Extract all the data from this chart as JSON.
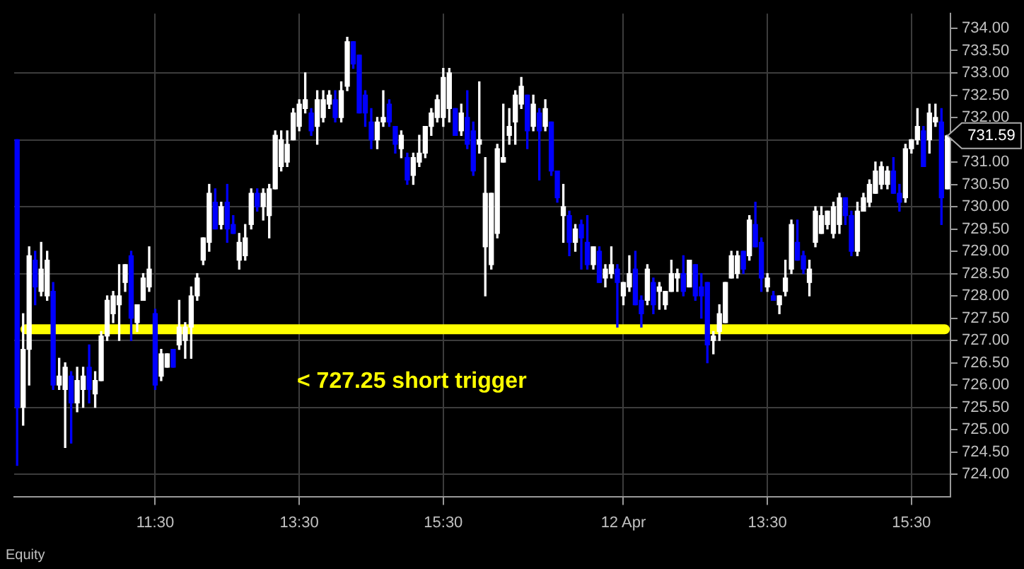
{
  "chart_data": {
    "type": "candlestick",
    "categories": [
      null,
      null,
      null,
      null,
      null,
      null,
      null,
      null,
      null,
      null,
      null,
      null,
      null,
      null,
      null,
      null,
      null,
      null,
      null,
      null,
      null,
      null,
      null,
      "11:30",
      null,
      null,
      null,
      null,
      null,
      null,
      null,
      null,
      null,
      null,
      null,
      null,
      null,
      null,
      null,
      null,
      null,
      null,
      null,
      null,
      null,
      null,
      null,
      "13:30",
      null,
      null,
      null,
      null,
      null,
      null,
      null,
      null,
      null,
      null,
      null,
      null,
      null,
      null,
      null,
      null,
      null,
      null,
      null,
      null,
      null,
      null,
      null,
      "15:30",
      null,
      null,
      null,
      null,
      null,
      null,
      null,
      null,
      null,
      null,
      null,
      null,
      null,
      null,
      null,
      null,
      null,
      null,
      null,
      null,
      null,
      null,
      null,
      null,
      null,
      null,
      null,
      null,
      null,
      "12 Apr",
      null,
      null,
      null,
      null,
      null,
      null,
      null,
      null,
      null,
      null,
      null,
      null,
      null,
      null,
      null,
      null,
      null,
      null,
      null,
      null,
      null,
      null,
      null,
      "13:30",
      null,
      null,
      null,
      null,
      null,
      null,
      null,
      null,
      null,
      null,
      null,
      null,
      null,
      null,
      null,
      null,
      null,
      null,
      null,
      null,
      null,
      null,
      null,
      "15:30",
      null,
      null,
      null,
      null,
      null,
      null
    ],
    "ohlc": [
      [
        731.5,
        731.5,
        724.2,
        725.5
      ],
      [
        725.5,
        727.6,
        725.1,
        726.8
      ],
      [
        726.8,
        729.1,
        726.0,
        728.9
      ],
      [
        728.8,
        729.0,
        727.8,
        728.2
      ],
      [
        728.1,
        729.2,
        728.0,
        728.6
      ],
      [
        728.0,
        729.0,
        727.9,
        728.8
      ],
      [
        728.1,
        728.3,
        725.9,
        726.0
      ],
      [
        726.0,
        726.6,
        725.9,
        726.2
      ],
      [
        725.9,
        726.5,
        724.6,
        726.4
      ],
      [
        726.2,
        726.3,
        724.7,
        725.6
      ],
      [
        725.6,
        726.4,
        725.4,
        726.1
      ],
      [
        725.9,
        726.4,
        725.5,
        726.2
      ],
      [
        726.4,
        726.9,
        725.6,
        725.9
      ],
      [
        725.8,
        726.3,
        725.5,
        726.1
      ],
      [
        726.1,
        727.2,
        726.1,
        727.1
      ],
      [
        727.1,
        728.0,
        727.0,
        727.9
      ],
      [
        727.6,
        728.1,
        727.4,
        728.0
      ],
      [
        727.8,
        728.7,
        727.0,
        728.0
      ],
      [
        728.3,
        728.7,
        728.1,
        728.7
      ],
      [
        728.9,
        729.0,
        727.0,
        727.5
      ],
      [
        727.4,
        727.8,
        727.2,
        727.8
      ],
      [
        727.9,
        728.5,
        727.9,
        728.4
      ],
      [
        728.2,
        729.1,
        728.1,
        728.6
      ],
      [
        727.6,
        727.7,
        725.9,
        726.0
      ],
      [
        726.2,
        726.8,
        726.1,
        726.7
      ],
      [
        726.4,
        726.7,
        726.4,
        726.7
      ],
      [
        726.8,
        726.8,
        726.4,
        726.4
      ],
      [
        726.9,
        727.9,
        726.8,
        727.3
      ],
      [
        727.0,
        727.4,
        726.6,
        727.3
      ],
      [
        727.3,
        728.2,
        726.6,
        728.0
      ],
      [
        728.0,
        728.5,
        727.9,
        728.4
      ],
      [
        728.8,
        729.3,
        728.7,
        729.3
      ],
      [
        729.2,
        730.5,
        729.0,
        730.3
      ],
      [
        730.1,
        730.4,
        729.5,
        729.5
      ],
      [
        729.6,
        730.1,
        729.5,
        730.0
      ],
      [
        730.1,
        730.5,
        729.2,
        729.5
      ],
      [
        729.6,
        729.8,
        729.4,
        729.4
      ],
      [
        728.8,
        729.4,
        728.6,
        729.2
      ],
      [
        728.9,
        729.6,
        728.8,
        729.3
      ],
      [
        729.6,
        730.4,
        729.5,
        730.3
      ],
      [
        730.3,
        730.4,
        729.9,
        730.0
      ],
      [
        730.0,
        730.4,
        729.7,
        730.3
      ],
      [
        729.8,
        730.5,
        729.3,
        730.4
      ],
      [
        730.4,
        731.7,
        730.4,
        731.6
      ],
      [
        730.9,
        731.7,
        730.8,
        731.5
      ],
      [
        731.0,
        731.7,
        730.9,
        731.4
      ],
      [
        731.5,
        732.2,
        731.5,
        732.1
      ],
      [
        731.8,
        732.4,
        731.7,
        732.3
      ],
      [
        732.2,
        733.0,
        732.1,
        732.4
      ],
      [
        732.1,
        732.2,
        731.6,
        731.7
      ],
      [
        731.8,
        732.6,
        731.4,
        732.4
      ],
      [
        732.0,
        732.6,
        731.9,
        732.4
      ],
      [
        732.3,
        732.6,
        732.2,
        732.5
      ],
      [
        732.4,
        732.6,
        731.9,
        732.0
      ],
      [
        732.0,
        732.8,
        731.9,
        732.6
      ],
      [
        732.7,
        733.8,
        732.6,
        733.7
      ],
      [
        733.7,
        733.7,
        733.1,
        733.2
      ],
      [
        733.4,
        733.4,
        732.1,
        732.1
      ],
      [
        732.5,
        732.6,
        731.8,
        732.1
      ],
      [
        731.9,
        732.2,
        731.3,
        731.5
      ],
      [
        731.5,
        732.0,
        731.3,
        731.9
      ],
      [
        731.9,
        732.6,
        731.8,
        732.0
      ],
      [
        732.3,
        732.4,
        731.8,
        731.9
      ],
      [
        731.8,
        731.8,
        731.2,
        731.4
      ],
      [
        731.3,
        731.7,
        731.1,
        731.6
      ],
      [
        731.1,
        731.2,
        730.5,
        730.6
      ],
      [
        730.7,
        731.2,
        730.5,
        731.1
      ],
      [
        731.0,
        731.6,
        730.9,
        731.2
      ],
      [
        731.2,
        731.8,
        731.1,
        731.8
      ],
      [
        731.8,
        732.2,
        731.6,
        732.1
      ],
      [
        732.0,
        732.5,
        731.9,
        732.4
      ],
      [
        732.0,
        733.1,
        731.8,
        732.9
      ],
      [
        732.2,
        733.1,
        731.9,
        733.0
      ],
      [
        732.2,
        732.2,
        731.6,
        731.6
      ],
      [
        731.7,
        732.3,
        731.6,
        732.1
      ],
      [
        732.0,
        732.6,
        731.3,
        731.4
      ],
      [
        731.7,
        731.9,
        730.7,
        730.8
      ],
      [
        731.4,
        732.8,
        731.2,
        731.5
      ],
      [
        729.1,
        731.1,
        728.0,
        730.3
      ],
      [
        728.7,
        730.3,
        728.6,
        730.3
      ],
      [
        729.4,
        731.4,
        729.3,
        731.3
      ],
      [
        731.0,
        732.3,
        731.0,
        731.1
      ],
      [
        731.6,
        732.2,
        731.4,
        731.8
      ],
      [
        731.9,
        732.6,
        731.4,
        732.5
      ],
      [
        732.3,
        732.9,
        732.2,
        732.7
      ],
      [
        732.5,
        732.5,
        731.3,
        731.7
      ],
      [
        731.8,
        732.5,
        731.7,
        732.3
      ],
      [
        732.1,
        732.2,
        730.6,
        731.7
      ],
      [
        731.8,
        732.4,
        731.7,
        732.2
      ],
      [
        731.9,
        731.9,
        730.7,
        730.8
      ],
      [
        730.8,
        730.8,
        730.1,
        730.2
      ],
      [
        729.8,
        730.5,
        729.2,
        730.0
      ],
      [
        729.8,
        729.9,
        728.9,
        729.2
      ],
      [
        729.2,
        729.6,
        729.0,
        729.5
      ],
      [
        729.6,
        729.7,
        728.6,
        729.3
      ],
      [
        729.2,
        729.8,
        728.6,
        728.7
      ],
      [
        728.7,
        729.1,
        728.6,
        729.1
      ],
      [
        729.0,
        729.1,
        728.3,
        728.3
      ],
      [
        728.4,
        728.7,
        728.2,
        728.6
      ],
      [
        728.5,
        729.1,
        728.4,
        728.7
      ],
      [
        728.6,
        728.7,
        727.3,
        728.3
      ],
      [
        728.0,
        728.3,
        727.8,
        728.3
      ],
      [
        728.2,
        728.9,
        728.1,
        728.5
      ],
      [
        728.6,
        729.0,
        727.8,
        727.8
      ],
      [
        727.9,
        728.0,
        727.3,
        727.6
      ],
      [
        727.9,
        728.7,
        727.8,
        728.6
      ],
      [
        728.3,
        728.4,
        727.6,
        727.8
      ],
      [
        728.1,
        728.3,
        727.7,
        728.2
      ],
      [
        727.8,
        728.1,
        727.7,
        728.1
      ],
      [
        728.1,
        728.8,
        728.1,
        728.5
      ],
      [
        728.4,
        728.6,
        728.1,
        728.5
      ],
      [
        728.5,
        728.9,
        728.0,
        728.1
      ],
      [
        728.2,
        728.8,
        728.2,
        728.8
      ],
      [
        728.7,
        728.7,
        727.9,
        728.0
      ],
      [
        728.2,
        728.5,
        727.5,
        728.0
      ],
      [
        728.3,
        728.3,
        726.5,
        726.9
      ],
      [
        727.0,
        727.2,
        726.7,
        727.1
      ],
      [
        727.2,
        727.8,
        727.0,
        727.6
      ],
      [
        727.4,
        728.3,
        727.4,
        728.3
      ],
      [
        728.4,
        729.0,
        728.4,
        728.9
      ],
      [
        728.5,
        729.0,
        728.4,
        728.9
      ],
      [
        729.0,
        729.0,
        728.5,
        728.6
      ],
      [
        728.9,
        729.8,
        728.8,
        729.7
      ],
      [
        729.6,
        730.1,
        729.1,
        729.1
      ],
      [
        729.2,
        729.3,
        728.1,
        728.4
      ],
      [
        728.2,
        728.5,
        728.1,
        728.4
      ],
      [
        728.0,
        728.1,
        727.9,
        727.9
      ],
      [
        727.8,
        728.0,
        727.6,
        728.0
      ],
      [
        728.1,
        728.8,
        728.0,
        728.4
      ],
      [
        728.6,
        729.7,
        728.5,
        729.6
      ],
      [
        729.2,
        729.7,
        728.8,
        728.8
      ],
      [
        728.9,
        729.0,
        728.5,
        728.6
      ],
      [
        728.3,
        728.8,
        728.0,
        728.6
      ],
      [
        729.2,
        730.0,
        729.1,
        729.9
      ],
      [
        729.4,
        730.0,
        729.4,
        729.8
      ],
      [
        729.6,
        729.9,
        729.5,
        729.9
      ],
      [
        729.4,
        730.1,
        729.3,
        730.0
      ],
      [
        729.6,
        730.3,
        729.4,
        730.2
      ],
      [
        730.2,
        730.2,
        729.6,
        729.8
      ],
      [
        729.8,
        729.9,
        728.9,
        729.0
      ],
      [
        729.0,
        730.1,
        728.9,
        729.9
      ],
      [
        729.9,
        730.3,
        729.9,
        730.2
      ],
      [
        730.1,
        730.6,
        730.0,
        730.5
      ],
      [
        730.3,
        731.0,
        730.3,
        730.8
      ],
      [
        730.5,
        731.0,
        730.4,
        730.9
      ],
      [
        730.5,
        730.9,
        730.4,
        730.8
      ],
      [
        730.8,
        731.1,
        730.3,
        730.3
      ],
      [
        730.3,
        730.5,
        729.9,
        730.1
      ],
      [
        730.2,
        731.4,
        730.1,
        731.3
      ],
      [
        731.3,
        731.5,
        731.2,
        731.5
      ],
      [
        731.5,
        732.2,
        731.4,
        731.8
      ],
      [
        731.7,
        731.8,
        730.9,
        730.9
      ],
      [
        731.5,
        732.3,
        731.2,
        732.1
      ],
      [
        731.9,
        732.3,
        731.8,
        732.0
      ],
      [
        731.9,
        732.2,
        729.6,
        730.2
      ],
      [
        730.4,
        731.6,
        730.4,
        731.59
      ]
    ],
    "colors": [
      "#0000ff",
      "#ffffff",
      "#ffffff",
      "#0000ff",
      "#ffffff",
      "#ffffff",
      "#0000ff",
      "#ffffff",
      "#ffffff",
      "#0000ff",
      "#ffffff",
      "#ffffff",
      "#0000ff",
      "#ffffff",
      "#ffffff",
      "#ffffff",
      "#ffffff",
      "#ffffff",
      "#ffffff",
      "#0000ff",
      "#ffffff",
      "#ffffff",
      "#ffffff",
      "#0000ff",
      "#ffffff",
      "#ffffff",
      "#0000ff",
      "#ffffff",
      "#ffffff",
      "#ffffff",
      "#ffffff",
      "#ffffff",
      "#ffffff",
      "#0000ff",
      "#ffffff",
      "#0000ff",
      "#0000ff",
      "#ffffff",
      "#ffffff",
      "#ffffff",
      "#0000ff",
      "#ffffff",
      "#ffffff",
      "#ffffff",
      "#ffffff",
      "#ffffff",
      "#ffffff",
      "#ffffff",
      "#ffffff",
      "#0000ff",
      "#ffffff",
      "#ffffff",
      "#ffffff",
      "#0000ff",
      "#ffffff",
      "#ffffff",
      "#0000ff",
      "#0000ff",
      "#0000ff",
      "#0000ff",
      "#ffffff",
      "#ffffff",
      "#0000ff",
      "#0000ff",
      "#ffffff",
      "#0000ff",
      "#ffffff",
      "#ffffff",
      "#ffffff",
      "#ffffff",
      "#ffffff",
      "#ffffff",
      "#ffffff",
      "#0000ff",
      "#ffffff",
      "#0000ff",
      "#0000ff",
      "#ffffff",
      "#ffffff",
      "#ffffff",
      "#ffffff",
      "#ffffff",
      "#ffffff",
      "#ffffff",
      "#ffffff",
      "#0000ff",
      "#ffffff",
      "#0000ff",
      "#ffffff",
      "#0000ff",
      "#0000ff",
      "#ffffff",
      "#0000ff",
      "#ffffff",
      "#0000ff",
      "#0000ff",
      "#ffffff",
      "#0000ff",
      "#ffffff",
      "#ffffff",
      "#0000ff",
      "#ffffff",
      "#ffffff",
      "#0000ff",
      "#0000ff",
      "#ffffff",
      "#0000ff",
      "#ffffff",
      "#ffffff",
      "#ffffff",
      "#ffffff",
      "#0000ff",
      "#ffffff",
      "#0000ff",
      "#0000ff",
      "#0000ff",
      "#ffffff",
      "#ffffff",
      "#ffffff",
      "#ffffff",
      "#ffffff",
      "#0000ff",
      "#ffffff",
      "#0000ff",
      "#0000ff",
      "#ffffff",
      "#0000ff",
      "#ffffff",
      "#ffffff",
      "#ffffff",
      "#0000ff",
      "#0000ff",
      "#ffffff",
      "#ffffff",
      "#ffffff",
      "#ffffff",
      "#ffffff",
      "#ffffff",
      "#0000ff",
      "#0000ff",
      "#ffffff",
      "#ffffff",
      "#ffffff",
      "#ffffff",
      "#ffffff",
      "#ffffff",
      "#0000ff",
      "#0000ff",
      "#ffffff",
      "#ffffff",
      "#ffffff",
      "#0000ff",
      "#ffffff",
      "#ffffff",
      "#0000ff",
      "#ffffff"
    ],
    "ylim": [
      723.5,
      734.33
    ],
    "yticks": [
      {
        "value": 724,
        "label": "724.00"
      },
      {
        "value": 724.5,
        "label": "724.50"
      },
      {
        "value": 725,
        "label": "725.00"
      },
      {
        "value": 725.5,
        "label": "725.50"
      },
      {
        "value": 726,
        "label": "726.00"
      },
      {
        "value": 726.5,
        "label": "726.50"
      },
      {
        "value": 727,
        "label": "727.00"
      },
      {
        "value": 727.5,
        "label": "727.50"
      },
      {
        "value": 728,
        "label": "728.00"
      },
      {
        "value": 728.5,
        "label": "728.50"
      },
      {
        "value": 729,
        "label": "729.00"
      },
      {
        "value": 729.5,
        "label": "729.50"
      },
      {
        "value": 730,
        "label": "730.00"
      },
      {
        "value": 730.5,
        "label": "730.50"
      },
      {
        "value": 731,
        "label": "731.00"
      },
      {
        "value": 731.5,
        "label": null
      },
      {
        "value": 732,
        "label": "732.00"
      },
      {
        "value": 732.5,
        "label": "732.50"
      },
      {
        "value": 733,
        "label": "733.00"
      },
      {
        "value": 733.5,
        "label": "733.50"
      },
      {
        "value": 734,
        "label": "734.00"
      }
    ],
    "grid": true,
    "ref_lines": [
      {
        "axis": "y",
        "value": 727.25,
        "label": "< 727.25 short trigger",
        "color": "#ffff00"
      }
    ],
    "annotations": [
      "731.59",
      "Equity"
    ]
  }
}
